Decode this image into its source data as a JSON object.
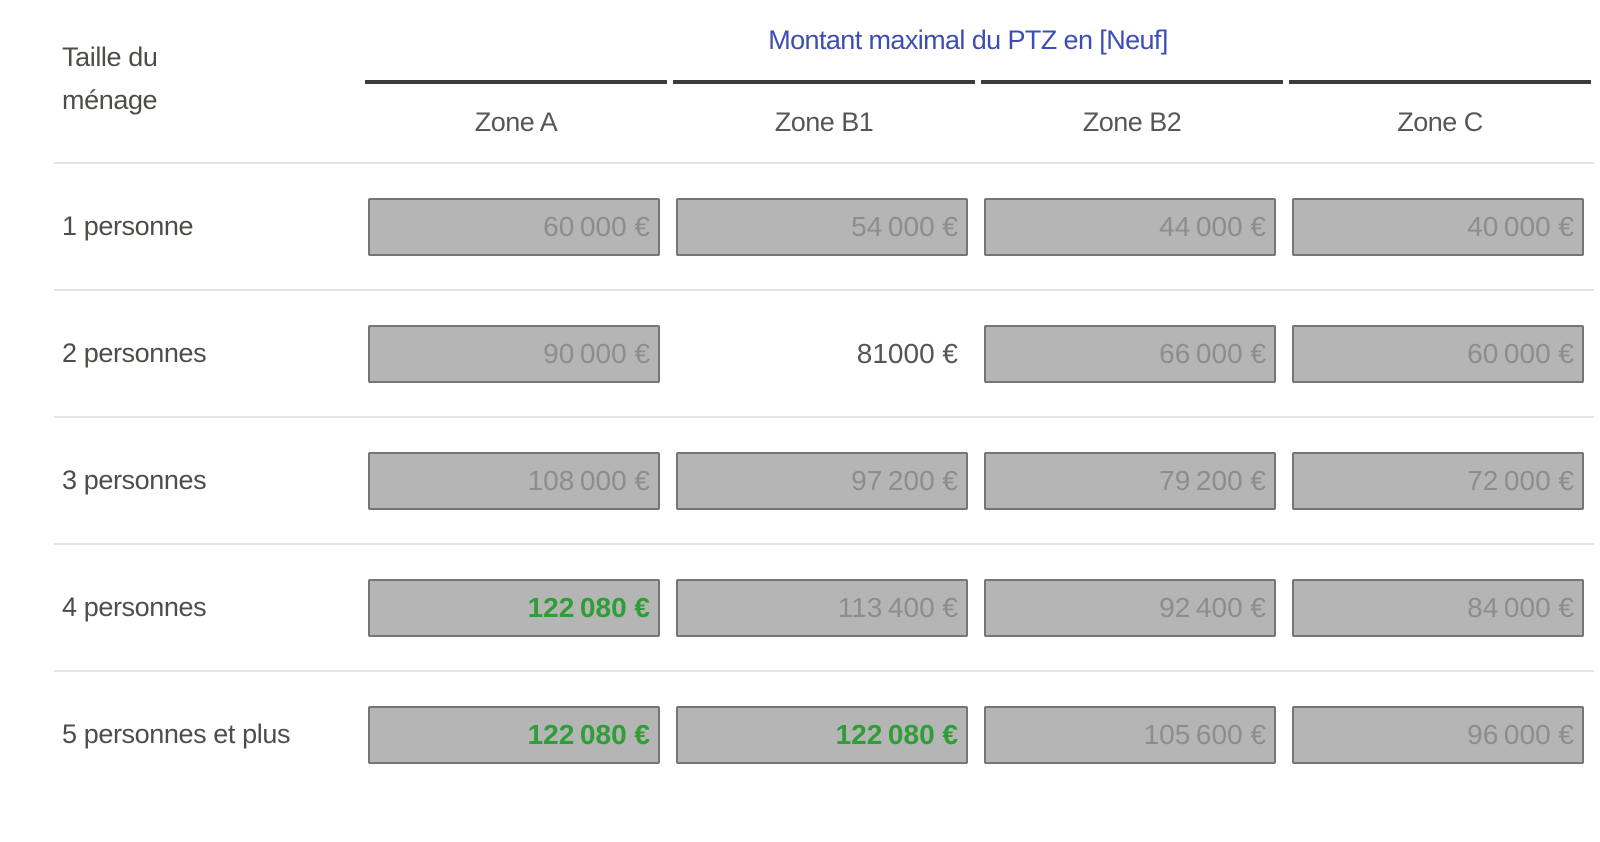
{
  "header": {
    "row_dimension_line1": "Taille du",
    "row_dimension_line2": "ménage",
    "group_title": "Montant maximal du PTZ en [Neuf]",
    "columns": [
      "Zone A",
      "Zone B1",
      "Zone B2",
      "Zone C"
    ]
  },
  "rows": [
    {
      "label": "1 personne",
      "cells": [
        {
          "value": "60 000 €",
          "style": "disabled"
        },
        {
          "value": "54 000 €",
          "style": "disabled"
        },
        {
          "value": "44 000 €",
          "style": "disabled"
        },
        {
          "value": "40 000 €",
          "style": "disabled"
        }
      ]
    },
    {
      "label": "2 personnes",
      "cells": [
        {
          "value": "90 000 €",
          "style": "disabled"
        },
        {
          "value": "81000 €",
          "style": "active"
        },
        {
          "value": "66 000 €",
          "style": "disabled"
        },
        {
          "value": "60 000 €",
          "style": "disabled"
        }
      ]
    },
    {
      "label": "3 personnes",
      "cells": [
        {
          "value": "108 000 €",
          "style": "disabled"
        },
        {
          "value": "97 200 €",
          "style": "disabled"
        },
        {
          "value": "79 200 €",
          "style": "disabled"
        },
        {
          "value": "72 000 €",
          "style": "disabled"
        }
      ]
    },
    {
      "label": "4 personnes",
      "cells": [
        {
          "value": "122 080 €",
          "style": "highlight"
        },
        {
          "value": "113 400 €",
          "style": "disabled"
        },
        {
          "value": "92 400 €",
          "style": "disabled"
        },
        {
          "value": "84 000 €",
          "style": "disabled"
        }
      ]
    },
    {
      "label": "5 personnes et plus",
      "cells": [
        {
          "value": "122 080 €",
          "style": "highlight"
        },
        {
          "value": "122 080 €",
          "style": "highlight"
        },
        {
          "value": "105 600 €",
          "style": "disabled"
        },
        {
          "value": "96 000 €",
          "style": "disabled"
        }
      ]
    }
  ],
  "colors": {
    "title_blue": "#3c4db3",
    "header_rule": "#3b3b3b",
    "row_separator": "#e3e3e3",
    "field_bg": "#b5b5b5",
    "field_border": "#757575",
    "field_text": "#8d8d8d",
    "active_text": "#55555a",
    "highlight_green": "#2f9e36",
    "label_text": "#4e4e48"
  }
}
